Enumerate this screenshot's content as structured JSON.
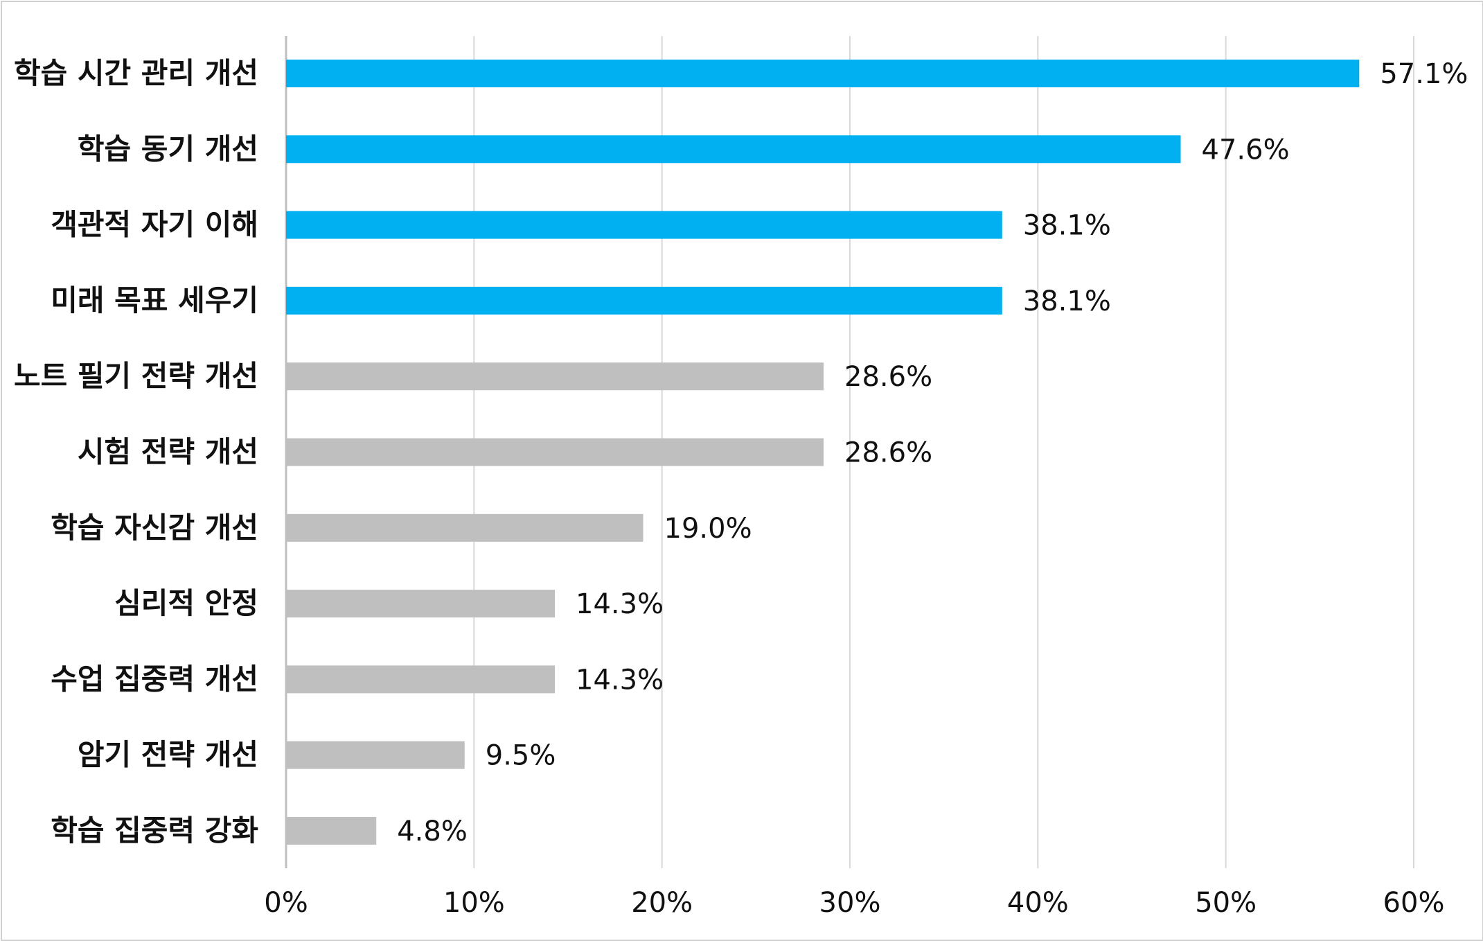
{
  "chart_data": {
    "type": "bar",
    "orientation": "horizontal",
    "categories": [
      "학습 시간 관리 개선",
      "학습 동기 개선",
      "객관적 자기 이해",
      "미래 목표 세우기",
      "노트 필기 전략 개선",
      "시험 전략 개선",
      "학습 자신감 개선",
      "심리적 안정",
      "수업 집중력 개선",
      "암기 전략 개선",
      "학습 집중력 강화"
    ],
    "values": [
      57.1,
      47.6,
      38.1,
      38.1,
      28.6,
      28.6,
      19.0,
      14.3,
      14.3,
      9.5,
      4.8
    ],
    "value_labels": [
      "57.1%",
      "47.6%",
      "38.1%",
      "38.1%",
      "28.6%",
      "28.6%",
      "19.0%",
      "14.3%",
      "14.3%",
      "9.5%",
      "4.8%"
    ],
    "highlighted": [
      true,
      true,
      true,
      true,
      false,
      false,
      false,
      false,
      false,
      false,
      false
    ],
    "xlim": [
      0,
      60
    ],
    "x_ticks": [
      "0%",
      "10%",
      "20%",
      "30%",
      "40%",
      "50%",
      "60%"
    ],
    "grid": "vertical",
    "legend": "none",
    "title": "",
    "xlabel": "",
    "ylabel": ""
  },
  "colors": {
    "highlight_bar": "#00b0f0",
    "default_bar": "#bfbfbf",
    "gridline": "#d9d9d9",
    "axis_line": "#bfbfbf",
    "text": "#111111"
  }
}
